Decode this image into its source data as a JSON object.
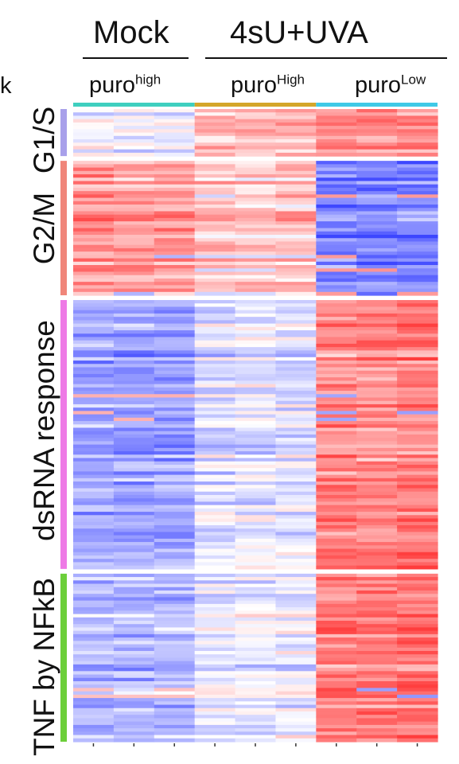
{
  "header": {
    "mock_label": "Mock",
    "treatment_label": "4sU+UVA",
    "mock_sub": {
      "base": "puro",
      "sup": "high"
    },
    "high_sub": {
      "base": "puro",
      "sup": "High"
    },
    "low_sub": {
      "base": "puro",
      "sup": "Low"
    },
    "left_fragment": "k"
  },
  "chart_data": {
    "type": "heatmap",
    "columns": [
      "Mock puro high 1",
      "Mock puro high 2",
      "Mock puro high 3",
      "4sU+UVA puro High 1",
      "4sU+UVA puro High 2",
      "4sU+UVA puro High 3",
      "4sU+UVA puro Low 1",
      "4sU+UVA puro Low 2",
      "4sU+UVA puro Low 3"
    ],
    "column_groups": [
      {
        "name": "Mock puro high",
        "color": "#3fcfbf",
        "columns": 3
      },
      {
        "name": "4sU+UVA puro High",
        "color": "#d4a62a",
        "columns": 3
      },
      {
        "name": "4sU+UVA puro Low",
        "color": "#3fc9e6",
        "columns": 3
      }
    ],
    "row_groups": [
      {
        "name": "G1/S",
        "color": "#a8a0ea",
        "rows": 14,
        "means": [
          -0.05,
          -0.1,
          -0.05,
          0.35,
          0.3,
          0.35,
          0.55,
          0.55,
          0.55
        ]
      },
      {
        "name": "G2/M",
        "color": "#f0867a",
        "rows": 40,
        "means": [
          0.5,
          0.5,
          0.5,
          0.3,
          0.25,
          0.3,
          -0.65,
          -0.7,
          -0.65
        ]
      },
      {
        "name": "dsRNA response",
        "color": "#ee7ae6",
        "rows": 80,
        "means": [
          -0.5,
          -0.5,
          -0.5,
          -0.18,
          -0.12,
          -0.15,
          0.6,
          0.6,
          0.65
        ]
      },
      {
        "name": "TNF by NFkB",
        "color": "#6ccf3a",
        "rows": 50,
        "means": [
          -0.4,
          -0.4,
          -0.4,
          -0.12,
          -0.1,
          -0.1,
          0.65,
          0.65,
          0.7
        ]
      }
    ],
    "color_scale": {
      "low": "#3c46ff",
      "mid": "#ffffff",
      "high": "#ff3c3c"
    }
  }
}
